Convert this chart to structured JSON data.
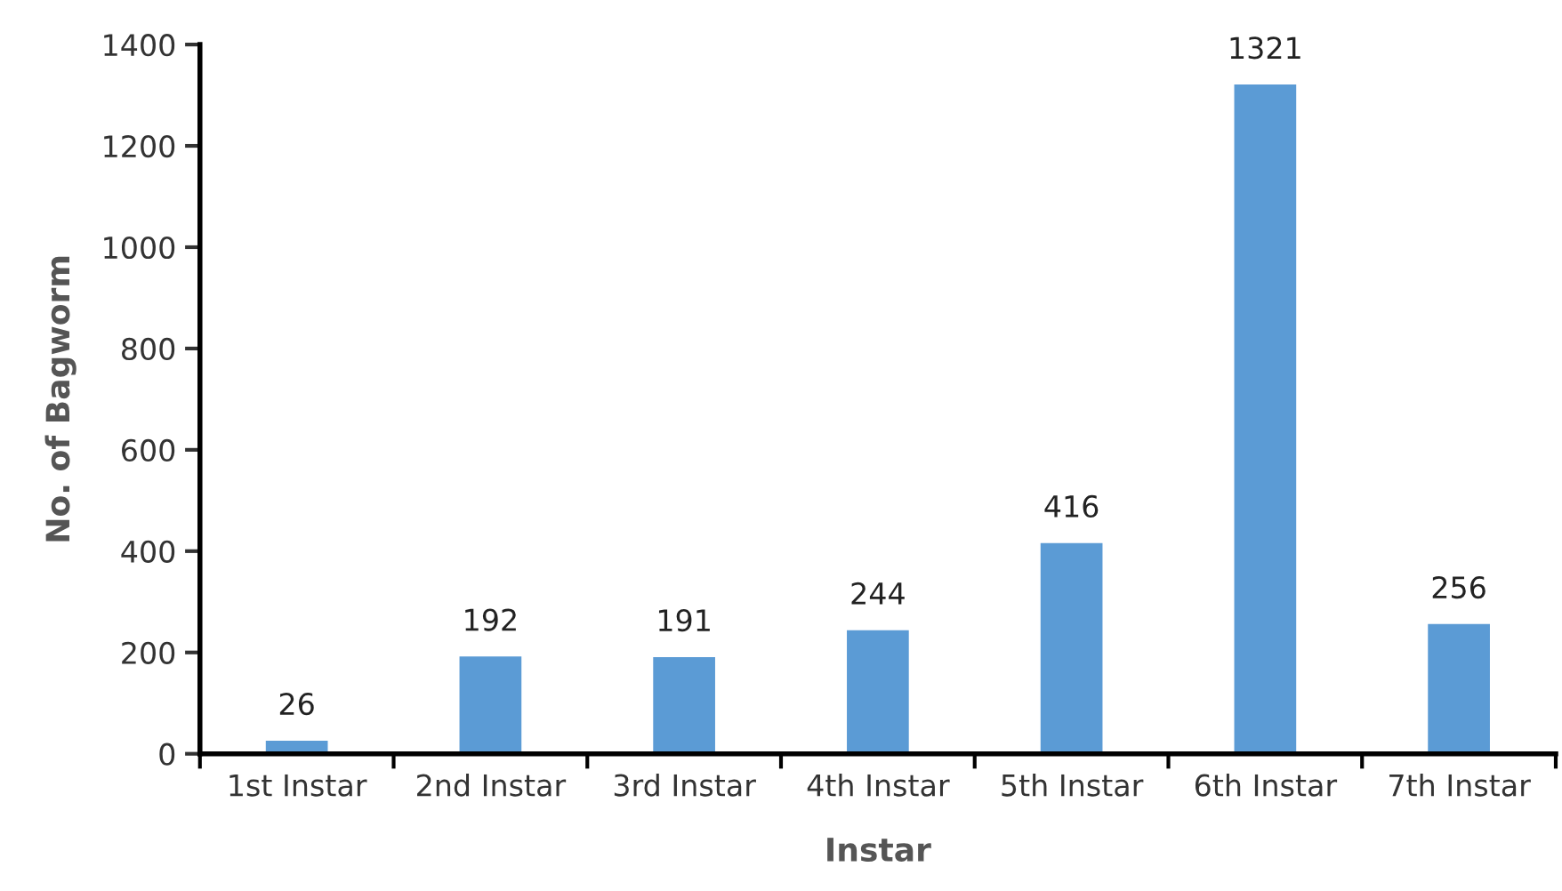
{
  "chart_data": {
    "type": "bar",
    "xlabel": "Instar",
    "ylabel": "No. of Bagworm",
    "categories": [
      "1st Instar",
      "2nd Instar",
      "3rd Instar",
      "4th Instar",
      "5th Instar",
      "6th Instar",
      "7th Instar"
    ],
    "values": [
      26,
      192,
      191,
      244,
      416,
      1321,
      256
    ],
    "color": "#5b9bd5",
    "ylim": [
      0,
      1400
    ],
    "yticks": [
      0,
      200,
      400,
      600,
      800,
      1000,
      1200,
      1400
    ],
    "data_labels": true,
    "grid": false
  }
}
